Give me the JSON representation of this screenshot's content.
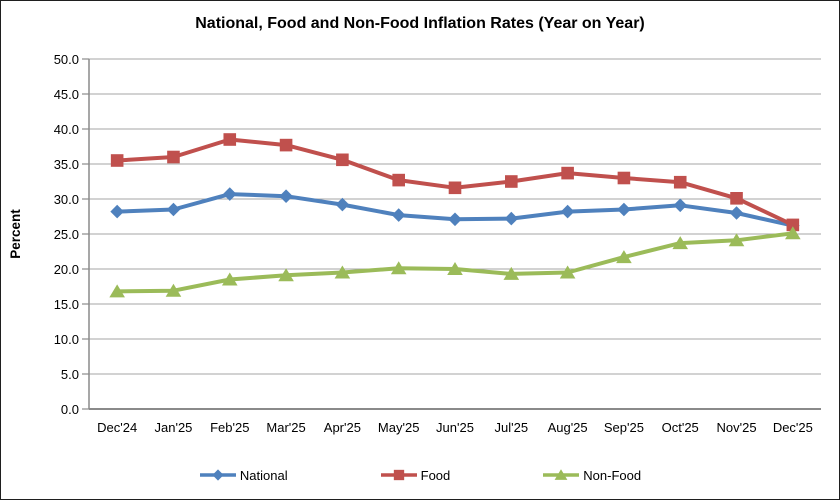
{
  "chart_data": {
    "type": "line",
    "title": "National, Food and Non-Food Inflation Rates (Year on Year)",
    "xlabel": "",
    "ylabel": "Percent",
    "ylim": [
      0,
      50
    ],
    "ytick_step": 5,
    "ytick_labels": [
      "50.0",
      "45.0",
      "40.0",
      "35.0",
      "30.0",
      "25.0",
      "20.0",
      "15.0",
      "10.0",
      "5.0",
      "0.0"
    ],
    "grid": "horizontal",
    "legend_position": "bottom",
    "categories": [
      "Dec'24",
      "Jan'25",
      "Feb'25",
      "Mar'25",
      "Apr'25",
      "May'25",
      "Jun'25",
      "Jul'25",
      "Aug'25",
      "Sep'25",
      "Oct'25",
      "Nov'25",
      "Dec'25"
    ],
    "series": [
      {
        "name": "National",
        "marker": "diamond",
        "color": "#4F81BD",
        "values": [
          28.2,
          28.5,
          30.7,
          30.4,
          29.2,
          27.7,
          27.1,
          27.2,
          28.2,
          28.5,
          29.1,
          28.0,
          26.2
        ]
      },
      {
        "name": "Food",
        "marker": "square",
        "color": "#C0504D",
        "values": [
          35.5,
          36.0,
          38.5,
          37.7,
          35.6,
          32.7,
          31.6,
          32.5,
          33.7,
          33.0,
          32.4,
          30.1,
          26.3
        ]
      },
      {
        "name": "Non-Food",
        "marker": "triangle",
        "color": "#9BBB59",
        "values": [
          16.8,
          16.9,
          18.5,
          19.1,
          19.5,
          20.1,
          20.0,
          19.3,
          19.5,
          21.7,
          23.7,
          24.1,
          25.1
        ]
      }
    ]
  },
  "colors": {
    "background": "#FFFFFF",
    "border": "#1F1F1F",
    "gridline": "#A6A6A6",
    "axis": "#8A8A8A",
    "text": "#000000"
  }
}
